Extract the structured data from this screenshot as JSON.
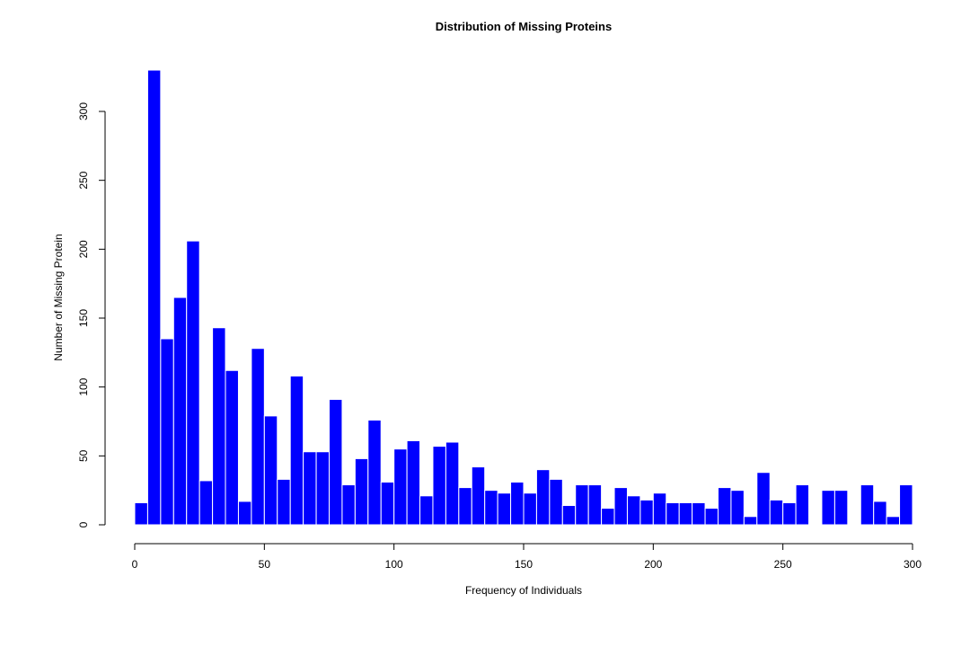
{
  "chart_data": {
    "type": "bar",
    "title": "Distribution of Missing Proteins",
    "xlabel": "Frequency of Individuals",
    "ylabel": "Number of Missing Protein",
    "bin_width": 5,
    "x_start": 0,
    "values": [
      16,
      330,
      135,
      165,
      206,
      32,
      143,
      112,
      17,
      128,
      79,
      33,
      108,
      53,
      53,
      91,
      29,
      48,
      76,
      31,
      55,
      61,
      21,
      57,
      60,
      27,
      42,
      25,
      23,
      31,
      23,
      40,
      33,
      14,
      29,
      29,
      12,
      27,
      21,
      18,
      23,
      16,
      16,
      16,
      12,
      27,
      25,
      6,
      38,
      18,
      16,
      29,
      0,
      25,
      25,
      0,
      29,
      17,
      6,
      29
    ],
    "xlim": [
      0,
      300
    ],
    "ylim": [
      0,
      330
    ],
    "xticks": [
      "0",
      "50",
      "100",
      "150",
      "200",
      "250",
      "300"
    ],
    "yticks": [
      "0",
      "50",
      "100",
      "150",
      "200",
      "250",
      "300"
    ],
    "grid": false,
    "colors": {
      "bar_fill": "#0000FF",
      "bar_border": "#FFFFFF"
    }
  }
}
